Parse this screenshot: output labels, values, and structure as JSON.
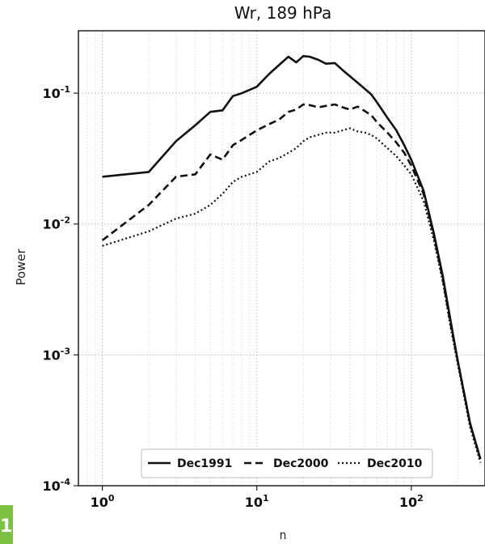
{
  "chart_data": {
    "type": "line",
    "title": "Wr, 189 hPa",
    "xlabel": "n",
    "ylabel": "Power",
    "xscale": "log",
    "yscale": "log",
    "xlim": [
      0.7,
      300
    ],
    "ylim": [
      0.0001,
      0.3
    ],
    "grid": true,
    "legend_position": "bottom",
    "x_ticks": [
      1,
      10,
      100
    ],
    "x_tick_labels": [
      {
        "base": "10",
        "exp": "0"
      },
      {
        "base": "10",
        "exp": "1"
      },
      {
        "base": "10",
        "exp": "2"
      }
    ],
    "y_ticks": [
      0.0001,
      0.001,
      0.01,
      0.1
    ],
    "y_tick_labels": [
      {
        "base": "10",
        "exp": "-4"
      },
      {
        "base": "10",
        "exp": "-3"
      },
      {
        "base": "10",
        "exp": "-2"
      },
      {
        "base": "10",
        "exp": "-1"
      }
    ],
    "series": [
      {
        "name": "Dec1991",
        "style": "solid",
        "x": [
          1,
          2,
          3,
          4,
          5,
          6,
          7,
          8,
          10,
          12,
          14,
          16,
          18,
          20,
          22,
          25,
          28,
          32,
          36,
          40,
          45,
          50,
          55,
          60,
          70,
          80,
          90,
          100,
          120,
          140,
          160,
          180,
          200,
          240,
          280
        ],
        "y": [
          0.023,
          0.025,
          0.043,
          0.057,
          0.072,
          0.074,
          0.095,
          0.1,
          0.112,
          0.14,
          0.165,
          0.19,
          0.172,
          0.192,
          0.19,
          0.18,
          0.168,
          0.17,
          0.15,
          0.135,
          0.12,
          0.108,
          0.098,
          0.085,
          0.065,
          0.052,
          0.04,
          0.031,
          0.018,
          0.0085,
          0.004,
          0.0018,
          0.0009,
          0.0003,
          0.00016
        ]
      },
      {
        "name": "Dec2000",
        "style": "dashed",
        "x": [
          1,
          2,
          3,
          4,
          5,
          6,
          7,
          8,
          10,
          12,
          14,
          16,
          18,
          20,
          22,
          25,
          28,
          32,
          36,
          40,
          45,
          50,
          55,
          60,
          70,
          80,
          90,
          100,
          120,
          140,
          160,
          180,
          200,
          240,
          280
        ],
        "y": [
          0.0075,
          0.014,
          0.023,
          0.024,
          0.034,
          0.031,
          0.04,
          0.044,
          0.052,
          0.058,
          0.063,
          0.072,
          0.075,
          0.082,
          0.081,
          0.078,
          0.08,
          0.082,
          0.078,
          0.075,
          0.079,
          0.073,
          0.068,
          0.06,
          0.05,
          0.042,
          0.035,
          0.028,
          0.017,
          0.0082,
          0.0038,
          0.0017,
          0.0009,
          0.0003,
          0.00016
        ]
      },
      {
        "name": "Dec2010",
        "style": "dotted",
        "x": [
          1,
          2,
          3,
          4,
          5,
          6,
          7,
          8,
          10,
          12,
          14,
          16,
          18,
          20,
          22,
          25,
          28,
          32,
          36,
          40,
          45,
          50,
          55,
          60,
          70,
          80,
          90,
          100,
          120,
          140,
          160,
          180,
          200,
          240,
          280
        ],
        "y": [
          0.0068,
          0.0088,
          0.011,
          0.012,
          0.014,
          0.017,
          0.021,
          0.023,
          0.025,
          0.03,
          0.032,
          0.035,
          0.038,
          0.043,
          0.046,
          0.048,
          0.05,
          0.05,
          0.052,
          0.054,
          0.051,
          0.05,
          0.048,
          0.045,
          0.038,
          0.033,
          0.028,
          0.024,
          0.015,
          0.0075,
          0.0036,
          0.0016,
          0.00085,
          0.00028,
          0.00015
        ]
      }
    ]
  },
  "badge_text": "1"
}
